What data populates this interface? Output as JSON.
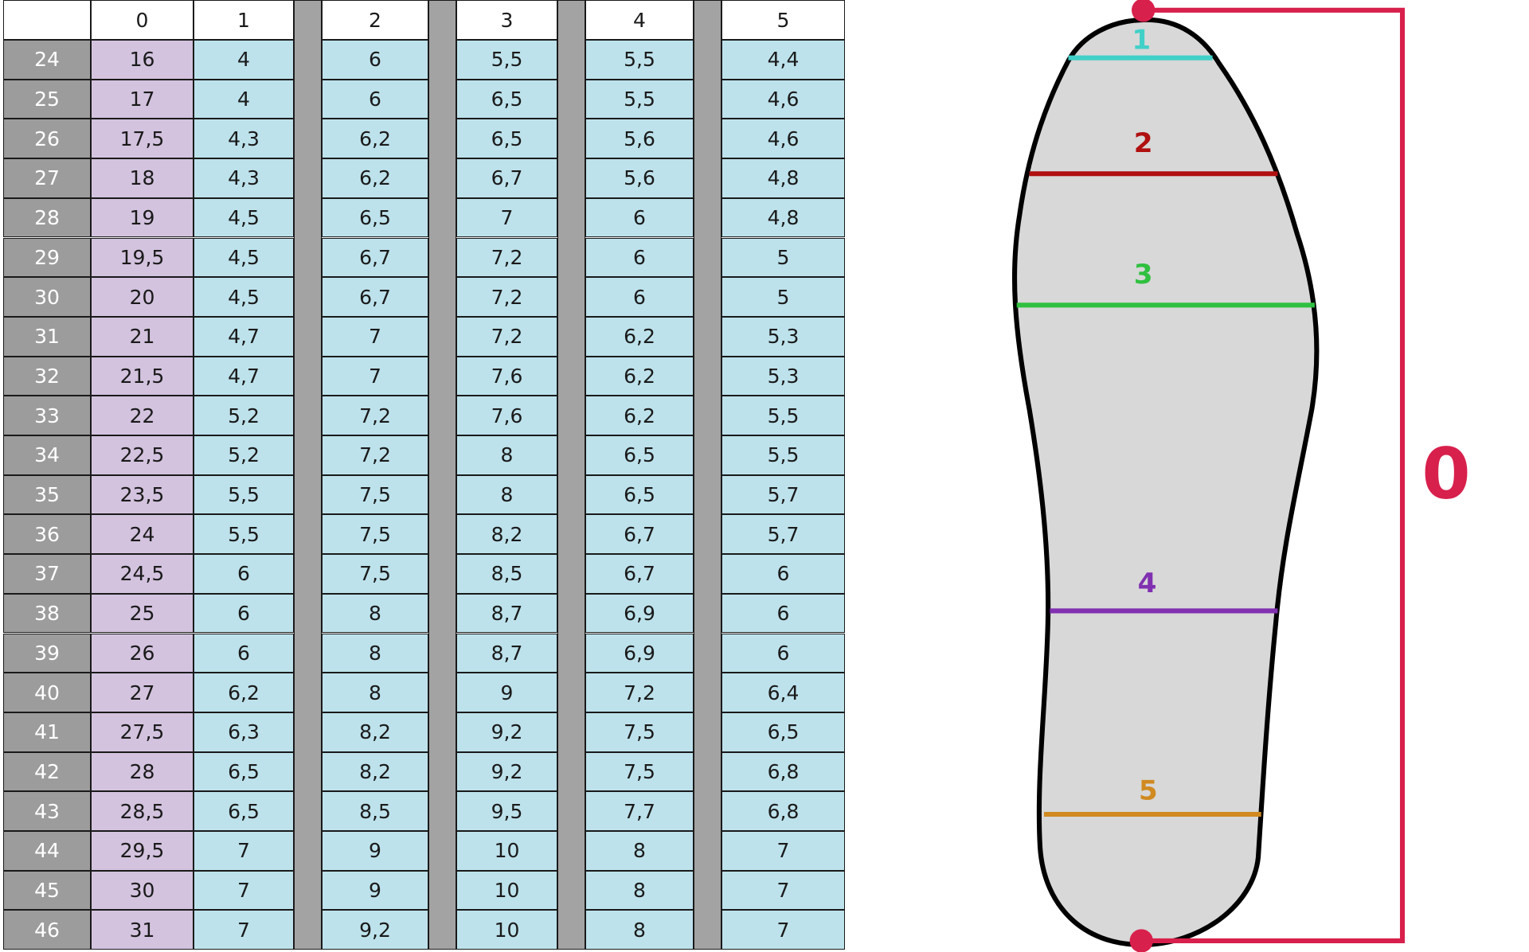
{
  "table": {
    "header": [
      "0",
      "1",
      "2",
      "3",
      "4",
      "5"
    ],
    "rows": [
      {
        "size": "24",
        "values": [
          "16",
          "4",
          "6",
          "5,5",
          "5,5",
          "4,4"
        ]
      },
      {
        "size": "25",
        "values": [
          "17",
          "4",
          "6",
          "6,5",
          "5,5",
          "4,6"
        ]
      },
      {
        "size": "26",
        "values": [
          "17,5",
          "4,3",
          "6,2",
          "6,5",
          "5,6",
          "4,6"
        ]
      },
      {
        "size": "27",
        "values": [
          "18",
          "4,3",
          "6,2",
          "6,7",
          "5,6",
          "4,8"
        ]
      },
      {
        "size": "28",
        "values": [
          "19",
          "4,5",
          "6,5",
          "7",
          "6",
          "4,8"
        ]
      },
      {
        "size": "29",
        "values": [
          "19,5",
          "4,5",
          "6,7",
          "7,2",
          "6",
          "5"
        ]
      },
      {
        "size": "30",
        "values": [
          "20",
          "4,5",
          "6,7",
          "7,2",
          "6",
          "5"
        ]
      },
      {
        "size": "31",
        "values": [
          "21",
          "4,7",
          "7",
          "7,2",
          "6,2",
          "5,3"
        ]
      },
      {
        "size": "32",
        "values": [
          "21,5",
          "4,7",
          "7",
          "7,6",
          "6,2",
          "5,3"
        ]
      },
      {
        "size": "33",
        "values": [
          "22",
          "5,2",
          "7,2",
          "7,6",
          "6,2",
          "5,5"
        ]
      },
      {
        "size": "34",
        "values": [
          "22,5",
          "5,2",
          "7,2",
          "8",
          "6,5",
          "5,5"
        ]
      },
      {
        "size": "35",
        "values": [
          "23,5",
          "5,5",
          "7,5",
          "8",
          "6,5",
          "5,7"
        ]
      },
      {
        "size": "36",
        "values": [
          "24",
          "5,5",
          "7,5",
          "8,2",
          "6,7",
          "5,7"
        ]
      },
      {
        "size": "37",
        "values": [
          "24,5",
          "6",
          "7,5",
          "8,5",
          "6,7",
          "6"
        ]
      },
      {
        "size": "38",
        "values": [
          "25",
          "6",
          "8",
          "8,7",
          "6,9",
          "6"
        ]
      },
      {
        "size": "39",
        "values": [
          "26",
          "6",
          "8",
          "8,7",
          "6,9",
          "6"
        ]
      },
      {
        "size": "40",
        "values": [
          "27",
          "6,2",
          "8",
          "9",
          "7,2",
          "6,4"
        ]
      },
      {
        "size": "41",
        "values": [
          "27,5",
          "6,3",
          "8,2",
          "9,2",
          "7,5",
          "6,5"
        ]
      },
      {
        "size": "42",
        "values": [
          "28",
          "6,5",
          "8,2",
          "9,2",
          "7,5",
          "6,8"
        ]
      },
      {
        "size": "43",
        "values": [
          "28,5",
          "6,5",
          "8,5",
          "9,5",
          "7,7",
          "6,8"
        ]
      },
      {
        "size": "44",
        "values": [
          "29,5",
          "7",
          "9",
          "10",
          "8",
          "7"
        ]
      },
      {
        "size": "45",
        "values": [
          "30",
          "7",
          "9",
          "10",
          "8",
          "7"
        ]
      },
      {
        "size": "46",
        "values": [
          "31",
          "7",
          "9,2",
          "10",
          "8",
          "7"
        ]
      }
    ]
  },
  "diagram": {
    "length_label": "0",
    "line_labels": [
      "1",
      "2",
      "3",
      "4",
      "5"
    ]
  }
}
